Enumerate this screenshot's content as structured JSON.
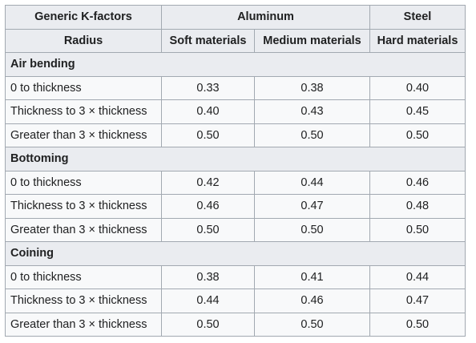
{
  "header": {
    "row1": [
      "Generic K-factors",
      "Aluminum",
      "Steel"
    ],
    "row2": [
      "Radius",
      "Soft materials",
      "Medium materials",
      "Hard materials"
    ]
  },
  "sections": [
    {
      "title": "Air bending",
      "rows": [
        {
          "radius": "0 to thickness",
          "soft": "0.33",
          "medium": "0.38",
          "hard": "0.40"
        },
        {
          "radius": "Thickness to 3 × thickness",
          "soft": "0.40",
          "medium": "0.43",
          "hard": "0.45"
        },
        {
          "radius": "Greater than 3 × thickness",
          "soft": "0.50",
          "medium": "0.50",
          "hard": "0.50"
        }
      ]
    },
    {
      "title": "Bottoming",
      "rows": [
        {
          "radius": "0 to thickness",
          "soft": "0.42",
          "medium": "0.44",
          "hard": "0.46"
        },
        {
          "radius": "Thickness to 3 × thickness",
          "soft": "0.46",
          "medium": "0.47",
          "hard": "0.48"
        },
        {
          "radius": "Greater than 3 × thickness",
          "soft": "0.50",
          "medium": "0.50",
          "hard": "0.50"
        }
      ]
    },
    {
      "title": "Coining",
      "rows": [
        {
          "radius": "0 to thickness",
          "soft": "0.38",
          "medium": "0.41",
          "hard": "0.44"
        },
        {
          "radius": "Thickness to 3 × thickness",
          "soft": "0.44",
          "medium": "0.46",
          "hard": "0.47"
        },
        {
          "radius": "Greater than 3 × thickness",
          "soft": "0.50",
          "medium": "0.50",
          "hard": "0.50"
        }
      ]
    }
  ]
}
